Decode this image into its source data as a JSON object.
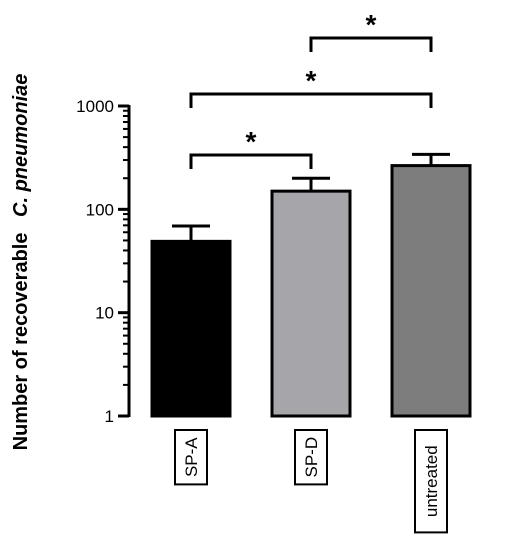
{
  "chart_data": {
    "type": "bar",
    "ylabel_parts": [
      "Number of recoverable",
      "C. pneumoniae"
    ],
    "yscale": "log",
    "ylim": [
      1,
      1000
    ],
    "yticks": [
      1,
      10,
      100,
      1000
    ],
    "ytick_labels": [
      "1",
      "10",
      "100",
      "1000"
    ],
    "categories": [
      "SP-A",
      "SP-D",
      "untreated"
    ],
    "values": [
      49,
      150,
      265
    ],
    "errors": [
      69,
      200,
      340
    ],
    "bar_colors": [
      "#000000",
      "#a6a6aa",
      "#7d7d7d"
    ],
    "significance": [
      {
        "from": 0,
        "to": 1,
        "label": "*"
      },
      {
        "from": 0,
        "to": 2,
        "label": "*"
      },
      {
        "from": 1,
        "to": 2,
        "label": "*"
      }
    ],
    "grid": false,
    "legend": "none"
  }
}
